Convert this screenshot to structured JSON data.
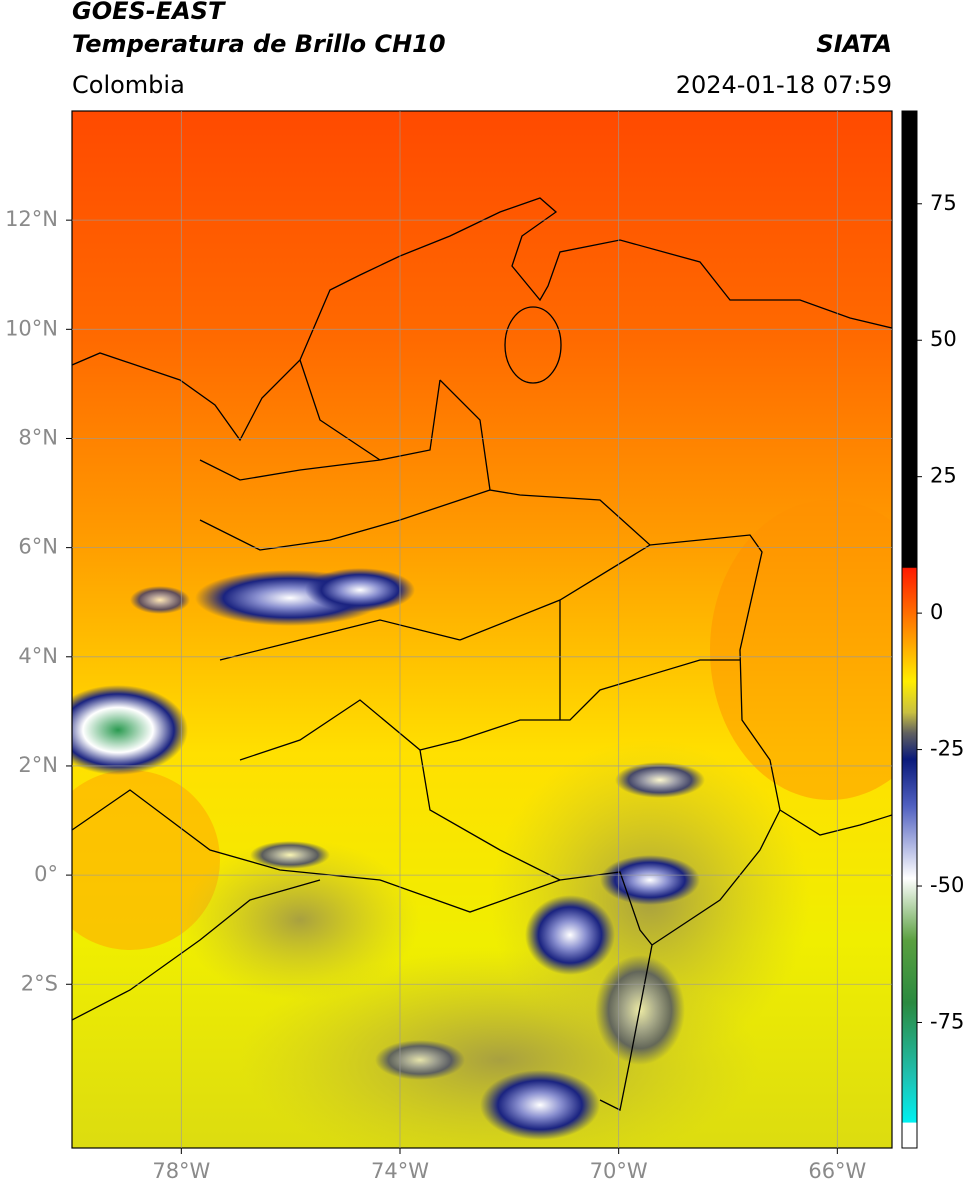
{
  "header": {
    "satellite": "GOES-EAST",
    "product": "Temperatura de Brillo CH10",
    "region": "Colombia",
    "source": "SIATA",
    "datetime": "2024-01-18 07:59"
  },
  "map": {
    "xlim": [
      -80,
      -65
    ],
    "ylim": [
      -5,
      14
    ],
    "lat_ticks": [
      {
        "value": 12,
        "label": "12°N"
      },
      {
        "value": 10,
        "label": "10°N"
      },
      {
        "value": 8,
        "label": "8°N"
      },
      {
        "value": 6,
        "label": "6°N"
      },
      {
        "value": 4,
        "label": "4°N"
      },
      {
        "value": 2,
        "label": "2°N"
      },
      {
        "value": 0,
        "label": "0°"
      },
      {
        "value": -2,
        "label": "2°S"
      }
    ],
    "lon_ticks": [
      {
        "value": -78,
        "label": "78°W"
      },
      {
        "value": -74,
        "label": "74°W"
      },
      {
        "value": -70,
        "label": "70°W"
      },
      {
        "value": -66,
        "label": "66°W"
      }
    ]
  },
  "colorbar": {
    "lim": [
      -98,
      92
    ],
    "ticks": [
      75,
      50,
      25,
      0,
      -25,
      -50,
      -75
    ]
  }
}
